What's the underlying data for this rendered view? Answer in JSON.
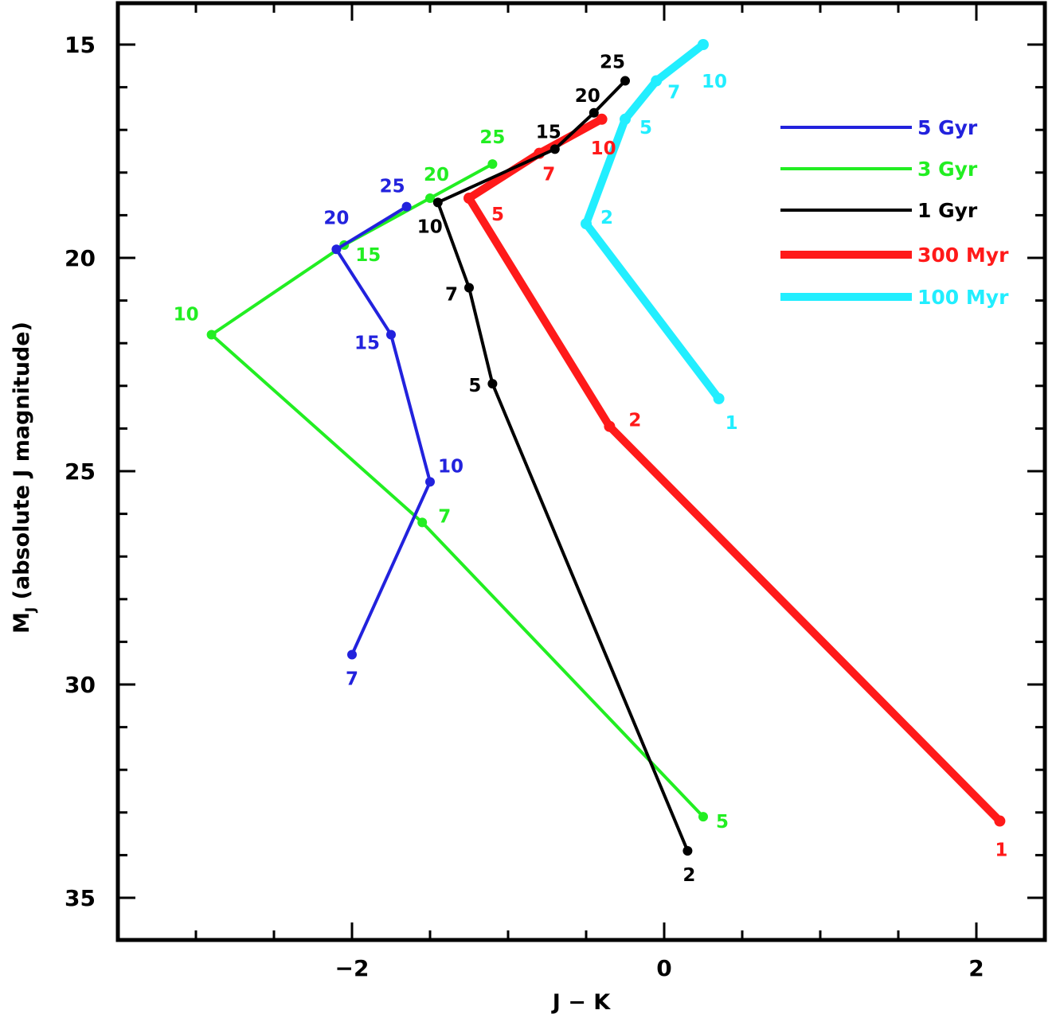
{
  "chart_data": {
    "type": "line",
    "xlabel": "J − K",
    "ylabel_main": "M",
    "ylabel_sub": "J",
    "ylabel_rest": " (absolute J magnitude)",
    "xlim": [
      -3.5,
      2.5
    ],
    "ylim": [
      36,
      15
    ],
    "y_inverted": true,
    "xticks": [
      -2,
      0,
      2
    ],
    "xtick_labels": [
      "−2",
      "0",
      "2"
    ],
    "yticks": [
      15,
      20,
      25,
      30,
      35
    ],
    "ytick_labels": [
      "15",
      "20",
      "25",
      "30",
      "35"
    ],
    "legend_position": "top-right",
    "series": [
      {
        "name": "5 Gyr",
        "color": "#2222dd",
        "width": 4,
        "points": [
          {
            "x": -2.0,
            "y": 29.3,
            "label": "7"
          },
          {
            "x": -1.5,
            "y": 25.25,
            "label": "10"
          },
          {
            "x": -1.75,
            "y": 21.8,
            "label": "15"
          },
          {
            "x": -2.1,
            "y": 19.8,
            "label": "20"
          },
          {
            "x": -1.65,
            "y": 18.8,
            "label": "25"
          }
        ]
      },
      {
        "name": "3 Gyr",
        "color": "#22ee22",
        "width": 4,
        "points": [
          {
            "x": 0.25,
            "y": 33.1,
            "label": "5"
          },
          {
            "x": -1.55,
            "y": 26.2,
            "label": "7"
          },
          {
            "x": -2.9,
            "y": 21.8,
            "label": "10"
          },
          {
            "x": -2.05,
            "y": 19.7,
            "label": "15"
          },
          {
            "x": -1.5,
            "y": 18.6,
            "label": "20"
          },
          {
            "x": -1.1,
            "y": 17.8,
            "label": "25"
          }
        ]
      },
      {
        "name": "1 Gyr",
        "color": "#000000",
        "width": 4,
        "points": [
          {
            "x": 0.15,
            "y": 33.9,
            "label": "2"
          },
          {
            "x": -1.1,
            "y": 22.95,
            "label": "5"
          },
          {
            "x": -1.25,
            "y": 20.7,
            "label": "7"
          },
          {
            "x": -1.45,
            "y": 18.7,
            "label": "10"
          },
          {
            "x": -0.7,
            "y": 17.45,
            "label": "15"
          },
          {
            "x": -0.45,
            "y": 16.6,
            "label": "20"
          },
          {
            "x": -0.25,
            "y": 15.85,
            "label": "25"
          }
        ]
      },
      {
        "name": "300 Myr",
        "color": "#ff1a1a",
        "width": 10,
        "points": [
          {
            "x": 2.15,
            "y": 33.2,
            "label": "1"
          },
          {
            "x": -0.35,
            "y": 23.95,
            "label": "2"
          },
          {
            "x": -1.25,
            "y": 18.6,
            "label": "5"
          },
          {
            "x": -0.8,
            "y": 17.55,
            "label": "7"
          },
          {
            "x": -0.4,
            "y": 16.75,
            "label": "10"
          }
        ]
      },
      {
        "name": "100 Myr",
        "color": "#22eeff",
        "width": 10,
        "points": [
          {
            "x": 0.35,
            "y": 23.3,
            "label": "1"
          },
          {
            "x": -0.5,
            "y": 19.2,
            "label": "2"
          },
          {
            "x": -0.25,
            "y": 16.75,
            "label": "5"
          },
          {
            "x": -0.05,
            "y": 15.85,
            "label": "7"
          },
          {
            "x": 0.25,
            "y": 15.0,
            "label": "10"
          }
        ]
      }
    ]
  }
}
